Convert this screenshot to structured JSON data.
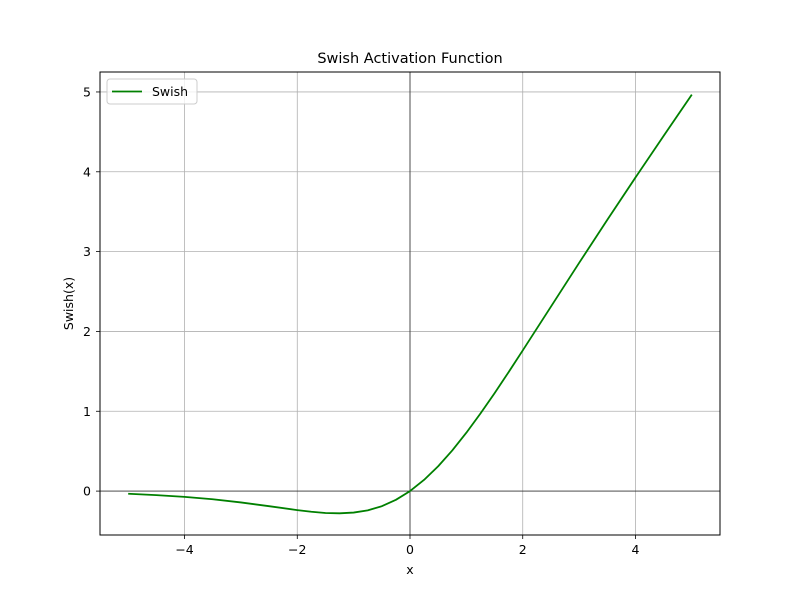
{
  "chart_data": {
    "type": "line",
    "title": "Swish Activation Function",
    "xlabel": "x",
    "ylabel": "Swish(x)",
    "xlim": [
      -5.5,
      5.5
    ],
    "ylim": [
      -0.55,
      5.25
    ],
    "x_ticks": [
      -4,
      -2,
      0,
      2,
      4
    ],
    "x_tick_labels": [
      "−4",
      "−2",
      "0",
      "2",
      "4"
    ],
    "y_ticks": [
      0,
      1,
      2,
      3,
      4,
      5
    ],
    "y_tick_labels": [
      "0",
      "1",
      "2",
      "3",
      "4",
      "5"
    ],
    "grid": true,
    "zero_lines": true,
    "legend": {
      "position": "top-left",
      "entries": [
        "Swish"
      ]
    },
    "series": [
      {
        "name": "Swish",
        "color": "#008000",
        "x": [
          -5.0,
          -4.5,
          -4.0,
          -3.5,
          -3.0,
          -2.5,
          -2.0,
          -1.75,
          -1.5,
          -1.25,
          -1.0,
          -0.75,
          -0.5,
          -0.25,
          0.0,
          0.25,
          0.5,
          0.75,
          1.0,
          1.25,
          1.5,
          1.75,
          2.0,
          2.5,
          3.0,
          3.5,
          4.0,
          4.5,
          5.0
        ],
        "y": [
          -0.033,
          -0.05,
          -0.072,
          -0.102,
          -0.142,
          -0.189,
          -0.238,
          -0.259,
          -0.274,
          -0.278,
          -0.269,
          -0.241,
          -0.189,
          -0.109,
          0.0,
          0.141,
          0.311,
          0.509,
          0.731,
          0.972,
          1.226,
          1.491,
          1.762,
          2.31,
          2.858,
          3.397,
          3.928,
          4.45,
          4.967
        ]
      }
    ]
  }
}
